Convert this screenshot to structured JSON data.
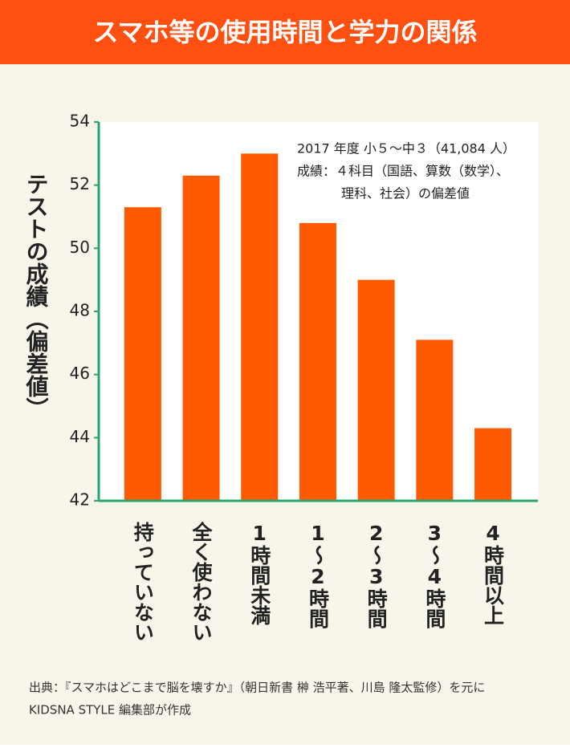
{
  "chart_data": {
    "type": "bar",
    "title": "スマホ等の使用時間と学力の関係",
    "y_label": "テストの成績（偏差値）",
    "annotation": [
      "2017 年度 小５～中３（41,084 人）",
      "成績：４科目（国語、算数（数学）、",
      "理科、社会）の偏差値"
    ],
    "source": [
      "出典：『スマホはどこまで脳を壊すか』（朝日新書 榊 浩平著、川島 隆太監修）を元に",
      "KIDSNA STYLE 編集部が作成"
    ],
    "categories": [
      "持っていない",
      "全く使わない",
      "1時間未満",
      "1～2時間",
      "2～3時間",
      "3～4時間",
      "4時間以上"
    ],
    "values": [
      51.3,
      52.3,
      53.0,
      50.8,
      49.0,
      47.1,
      44.3
    ],
    "color": "#ff5a00",
    "axis_color": "#2ba36c",
    "ylim": [
      42,
      54
    ],
    "yticks": [
      42,
      44,
      46,
      48,
      50,
      52,
      54
    ],
    "grid": false
  }
}
